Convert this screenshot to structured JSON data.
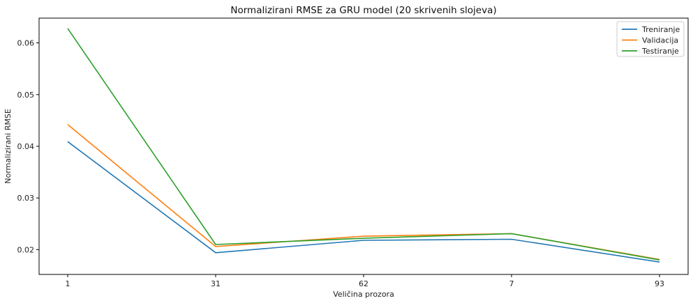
{
  "chart_data": {
    "type": "line",
    "title": "Normalizirani RMSE za GRU model (20 skrivenih slojeva)",
    "xlabel": "Veličina prozora",
    "ylabel": "Normalizirani RMSE",
    "categories": [
      "1",
      "31",
      "62",
      "7",
      "93"
    ],
    "ylim": [
      0.0152,
      0.0648
    ],
    "yticks": [
      "0.02",
      "0.03",
      "0.04",
      "0.05",
      "0.06"
    ],
    "legend_position": "top-right",
    "grid": false,
    "series": [
      {
        "name": "Treniranje",
        "color": "#1f77b4",
        "values": [
          0.0409,
          0.0194,
          0.0218,
          0.022,
          0.0176
        ]
      },
      {
        "name": "Validacija",
        "color": "#ff7f0e",
        "values": [
          0.0442,
          0.0206,
          0.0226,
          0.0231,
          0.0181
        ]
      },
      {
        "name": "Testiranje",
        "color": "#2ca02c",
        "values": [
          0.0628,
          0.021,
          0.0222,
          0.0231,
          0.018
        ]
      }
    ]
  }
}
